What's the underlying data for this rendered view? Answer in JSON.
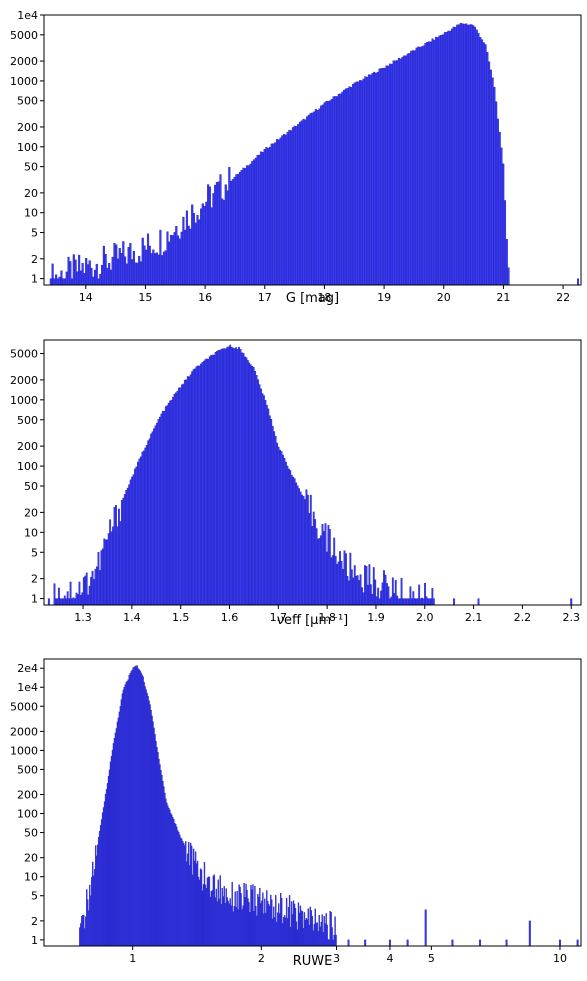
{
  "chart_data": [
    {
      "type": "bar",
      "subtype": "histogram",
      "xlabel": "G [mag]",
      "ylabel": "",
      "yscale": "log",
      "xlim": [
        13.3,
        22.3
      ],
      "ylim": [
        0.8,
        10000
      ],
      "x_ticks": [
        "14",
        "15",
        "16",
        "17",
        "18",
        "19",
        "20",
        "21",
        "22"
      ],
      "y_ticks": [
        "1",
        "2",
        "5",
        "10",
        "20",
        "50",
        "100",
        "200",
        "500",
        "1000",
        "2000",
        "5000",
        "1e4"
      ],
      "bar_color": "#3a3aee",
      "edge_color": "#1a1ab5",
      "envelope": {
        "x": [
          13.4,
          14.0,
          14.5,
          15.0,
          15.3,
          15.5,
          16.0,
          16.5,
          17.0,
          17.5,
          18.0,
          18.5,
          19.0,
          19.5,
          20.0,
          20.3,
          20.5,
          20.7,
          20.85,
          21.0,
          21.1
        ],
        "y": [
          1,
          1.5,
          2,
          3,
          4,
          6,
          15,
          35,
          90,
          200,
          450,
          900,
          1600,
          2900,
          5200,
          7500,
          7000,
          3500,
          800,
          50,
          1
        ]
      },
      "outliers": [
        [
          13.45,
          1
        ],
        [
          13.6,
          1
        ],
        [
          22.25,
          1
        ]
      ]
    },
    {
      "type": "bar",
      "subtype": "histogram",
      "xlabel": "νeff [μm⁻¹]",
      "ylabel": "",
      "yscale": "log",
      "xlim": [
        1.22,
        2.32
      ],
      "ylim": [
        0.8,
        8000
      ],
      "x_ticks": [
        "1.3",
        "1.4",
        "1.5",
        "1.6",
        "1.7",
        "1.8",
        "1.9",
        "2.0",
        "2.1",
        "2.2",
        "2.3"
      ],
      "y_ticks": [
        "1",
        "2",
        "5",
        "10",
        "20",
        "50",
        "100",
        "200",
        "500",
        "1000",
        "2000",
        "5000"
      ],
      "bar_color": "#3a3aee",
      "edge_color": "#1a1ab5",
      "envelope": {
        "x": [
          1.24,
          1.3,
          1.33,
          1.35,
          1.38,
          1.42,
          1.46,
          1.5,
          1.53,
          1.57,
          1.6,
          1.62,
          1.65,
          1.68,
          1.7,
          1.73,
          1.76,
          1.8,
          1.84,
          1.88,
          1.92,
          1.97,
          2.02
        ],
        "y": [
          1,
          1.5,
          3,
          8,
          30,
          150,
          600,
          1600,
          3000,
          5000,
          6500,
          6000,
          3000,
          700,
          200,
          70,
          25,
          8,
          3,
          2,
          1.5,
          1,
          1
        ]
      },
      "outliers": [
        [
          1.23,
          1
        ],
        [
          1.25,
          1
        ],
        [
          1.27,
          1
        ],
        [
          2.06,
          1
        ],
        [
          2.11,
          1
        ],
        [
          2.3,
          1
        ]
      ]
    },
    {
      "type": "bar",
      "subtype": "histogram",
      "xlabel": "RUWE",
      "ylabel": "",
      "xscale": "log",
      "yscale": "log",
      "xlim": [
        0.62,
        11.2
      ],
      "ylim": [
        0.8,
        28000
      ],
      "x_ticks": [
        "1",
        "2",
        "3",
        "4",
        "5",
        "10"
      ],
      "y_ticks": [
        "1",
        "2",
        "5",
        "10",
        "20",
        "50",
        "100",
        "200",
        "500",
        "1000",
        "2000",
        "5000",
        "1e4",
        "2e4"
      ],
      "bar_color": "#3a3aee",
      "edge_color": "#1a1ab5",
      "envelope": {
        "x": [
          0.75,
          0.8,
          0.85,
          0.9,
          0.95,
          1.0,
          1.02,
          1.05,
          1.1,
          1.15,
          1.2,
          1.3,
          1.4,
          1.5,
          1.7,
          2.0,
          2.3,
          2.6,
          3.0
        ],
        "y": [
          1,
          8,
          100,
          1200,
          9000,
          20000,
          22000,
          17000,
          5000,
          800,
          150,
          40,
          15,
          8,
          5,
          4,
          3,
          2,
          1.5
        ]
      },
      "outliers": [
        [
          3.2,
          1
        ],
        [
          3.5,
          1
        ],
        [
          4.0,
          1
        ],
        [
          4.4,
          1
        ],
        [
          4.85,
          3
        ],
        [
          5.6,
          1
        ],
        [
          6.5,
          1
        ],
        [
          7.5,
          1
        ],
        [
          8.5,
          2
        ],
        [
          10.0,
          1
        ],
        [
          11.0,
          1
        ]
      ]
    }
  ]
}
